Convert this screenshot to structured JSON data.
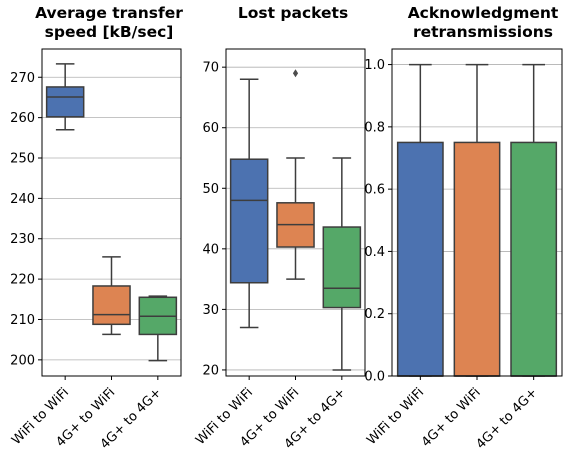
{
  "chart_data": [
    {
      "type": "box",
      "title": [
        "Average transfer",
        "speed [kB/sec]"
      ],
      "categories": [
        "WiFi to WiFi",
        "4G+ to WiFi",
        "4G+ to 4G+"
      ],
      "colors": [
        "#4c72b0",
        "#dd8452",
        "#55a868"
      ],
      "ylim": [
        196,
        277
      ],
      "yticks": [
        200,
        210,
        220,
        230,
        240,
        250,
        260,
        270
      ],
      "ytick_labels": [
        "200",
        "210",
        "220",
        "230",
        "240",
        "250",
        "260",
        "270"
      ],
      "grid": true,
      "boxes": [
        {
          "q1": 260.2,
          "median": 265.1,
          "q3": 267.6,
          "whisker_low": 257.0,
          "whisker_high": 273.3,
          "outliers": []
        },
        {
          "q1": 208.8,
          "median": 211.2,
          "q3": 218.3,
          "whisker_low": 206.3,
          "whisker_high": 225.5,
          "outliers": []
        },
        {
          "q1": 206.3,
          "median": 210.8,
          "q3": 215.5,
          "whisker_low": 199.8,
          "whisker_high": 215.8,
          "outliers": []
        }
      ]
    },
    {
      "type": "box",
      "title": [
        "Lost packets"
      ],
      "categories": [
        "WiFi to WiFi",
        "4G+ to WiFi",
        "4G+ to 4G+"
      ],
      "colors": [
        "#4c72b0",
        "#dd8452",
        "#55a868"
      ],
      "ylim": [
        19,
        73
      ],
      "yticks": [
        20,
        30,
        40,
        50,
        60,
        70
      ],
      "ytick_labels": [
        "20",
        "30",
        "40",
        "50",
        "60",
        "70"
      ],
      "grid": true,
      "boxes": [
        {
          "q1": 34.4,
          "median": 48.0,
          "q3": 54.8,
          "whisker_low": 27.0,
          "whisker_high": 68.0,
          "outliers": []
        },
        {
          "q1": 40.3,
          "median": 44.0,
          "q3": 47.6,
          "whisker_low": 35.0,
          "whisker_high": 55.0,
          "outliers": [
            69.0
          ]
        },
        {
          "q1": 30.3,
          "median": 33.5,
          "q3": 43.6,
          "whisker_low": 20.0,
          "whisker_high": 55.0,
          "outliers": []
        }
      ]
    },
    {
      "type": "box",
      "title": [
        "Acknowledgment",
        "retransmissions"
      ],
      "categories": [
        "WiFi to WiFi",
        "4G+ to WiFi",
        "4G+ to 4G+"
      ],
      "colors": [
        "#4c72b0",
        "#dd8452",
        "#55a868"
      ],
      "ylim": [
        0.0,
        1.05
      ],
      "yticks": [
        0.0,
        0.2,
        0.4,
        0.6,
        0.8,
        1.0
      ],
      "ytick_labels": [
        "0.0",
        "0.2",
        "0.4",
        "0.6",
        "0.8",
        "1.0"
      ],
      "grid": true,
      "boxes": [
        {
          "q1": 0.0,
          "median": 0.0,
          "q3": 0.75,
          "whisker_low": 0.0,
          "whisker_high": 1.0,
          "outliers": []
        },
        {
          "q1": 0.0,
          "median": 0.0,
          "q3": 0.75,
          "whisker_low": 0.0,
          "whisker_high": 1.0,
          "outliers": []
        },
        {
          "q1": 0.0,
          "median": 0.0,
          "q3": 0.75,
          "whisker_low": 0.0,
          "whisker_high": 1.0,
          "outliers": []
        }
      ]
    }
  ]
}
